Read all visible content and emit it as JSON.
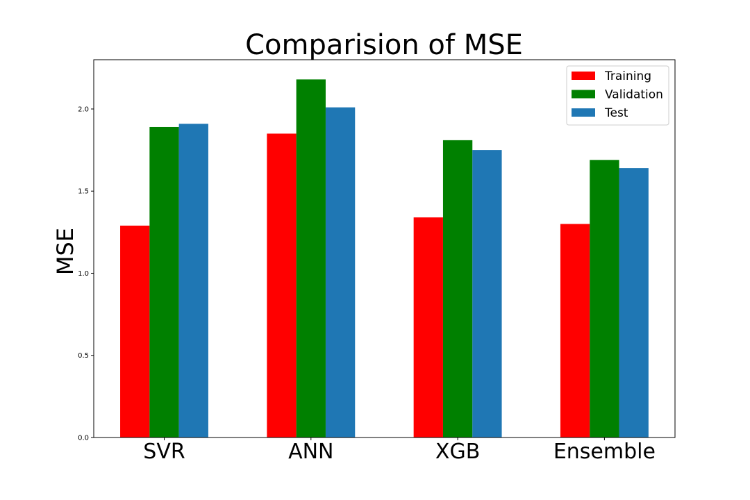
{
  "chart_data": {
    "type": "bar",
    "title": "Comparision of MSE",
    "xlabel": "",
    "ylabel": "MSE",
    "categories": [
      "SVR",
      "ANN",
      "XGB",
      "Ensemble"
    ],
    "series": [
      {
        "name": "Training",
        "color": "#ff0000",
        "values": [
          1.29,
          1.85,
          1.34,
          1.3
        ]
      },
      {
        "name": "Validation",
        "color": "#008000",
        "values": [
          1.89,
          2.18,
          1.81,
          1.69
        ]
      },
      {
        "name": "Test",
        "color": "#1f77b4",
        "values": [
          1.91,
          2.01,
          1.75,
          1.64
        ]
      }
    ],
    "ylim": [
      0,
      2.3
    ],
    "yticks": [
      "0.0",
      "0.5",
      "1.0",
      "1.5",
      "2.0"
    ],
    "grid": false,
    "legend_position": "top-right"
  }
}
